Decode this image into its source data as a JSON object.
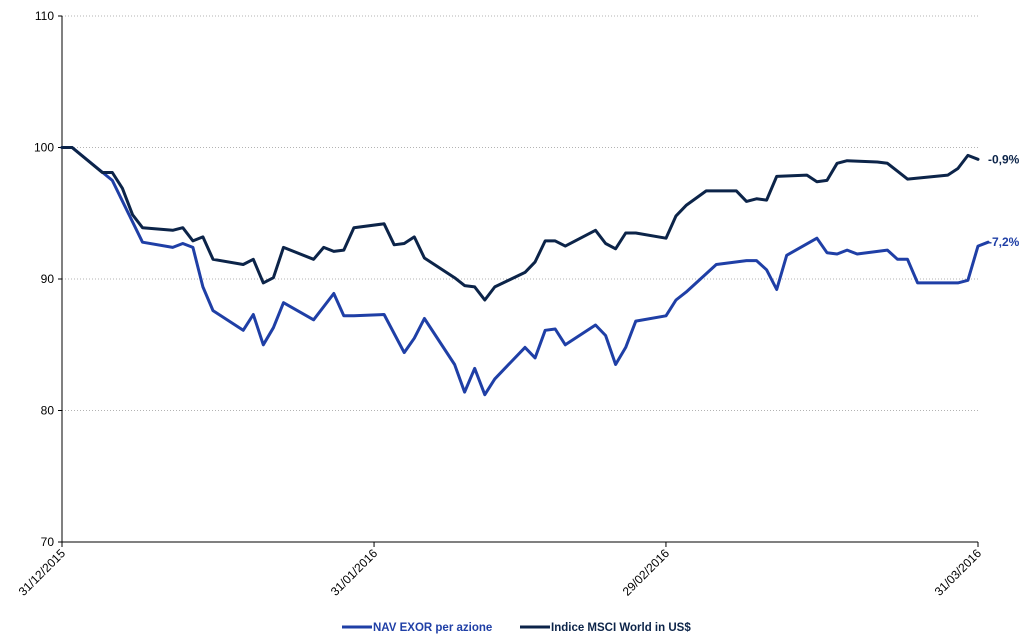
{
  "chart_data": {
    "type": "line",
    "title": "",
    "xlabel": "",
    "ylabel": "",
    "ylim": [
      70,
      110
    ],
    "yticks": [
      "70",
      "80",
      "90",
      "100",
      "110"
    ],
    "x_range": [
      0,
      91
    ],
    "xticks": [
      {
        "label": "31/12/2015",
        "x": 0
      },
      {
        "label": "31/01/2016",
        "x": 31
      },
      {
        "label": "29/02/2016",
        "x": 60
      },
      {
        "label": "31/03/2016",
        "x": 91
      }
    ],
    "grid": "horizontal-dotted",
    "legend": "bottom",
    "series": [
      {
        "name": "NAV EXOR per azione",
        "color": "#1f3fa6",
        "end_label": "-7,2%",
        "points": [
          [
            0,
            100
          ],
          [
            1,
            100
          ],
          [
            5,
            97.5
          ],
          [
            8,
            92.8
          ],
          [
            11,
            92.4
          ],
          [
            12,
            92.7
          ],
          [
            13,
            92.4
          ],
          [
            14,
            89.4
          ],
          [
            15,
            87.6
          ],
          [
            18,
            86.1
          ],
          [
            19,
            87.3
          ],
          [
            20,
            85
          ],
          [
            21,
            86.3
          ],
          [
            22,
            88.2
          ],
          [
            25,
            86.9
          ],
          [
            27,
            88.9
          ],
          [
            28,
            87.2
          ],
          [
            29,
            87.2
          ],
          [
            32,
            87.3
          ],
          [
            34,
            84.4
          ],
          [
            35,
            85.5
          ],
          [
            36,
            87
          ],
          [
            39,
            83.5
          ],
          [
            40,
            81.4
          ],
          [
            41,
            83.2
          ],
          [
            42,
            81.2
          ],
          [
            43,
            82.4
          ],
          [
            46,
            84.8
          ],
          [
            47,
            84
          ],
          [
            48,
            86.1
          ],
          [
            49,
            86.2
          ],
          [
            50,
            85
          ],
          [
            53,
            86.5
          ],
          [
            54,
            85.7
          ],
          [
            55,
            83.5
          ],
          [
            56,
            84.8
          ],
          [
            57,
            86.8
          ],
          [
            60,
            87.2
          ],
          [
            61,
            88.4
          ],
          [
            62,
            89
          ],
          [
            65,
            91.1
          ],
          [
            68,
            91.4
          ],
          [
            69,
            91.4
          ],
          [
            70,
            90.7
          ],
          [
            71,
            89.2
          ],
          [
            72,
            91.8
          ],
          [
            75,
            93.1
          ],
          [
            76,
            92
          ],
          [
            77,
            91.9
          ],
          [
            78,
            92.2
          ],
          [
            79,
            91.9
          ],
          [
            82,
            92.2
          ],
          [
            83,
            91.5
          ],
          [
            84,
            91.5
          ],
          [
            85,
            89.7
          ],
          [
            89,
            89.7
          ],
          [
            90,
            89.9
          ],
          [
            91,
            92.5
          ],
          [
            92,
            92.8
          ]
        ]
      },
      {
        "name": "Indice MSCI World in US$",
        "color": "#0c2449",
        "end_label": "-0,9%",
        "points": [
          [
            0,
            100
          ],
          [
            1,
            100
          ],
          [
            4,
            98.1
          ],
          [
            5,
            98.1
          ],
          [
            6,
            96.9
          ],
          [
            7,
            94.9
          ],
          [
            8,
            93.9
          ],
          [
            11,
            93.7
          ],
          [
            12,
            93.9
          ],
          [
            13,
            92.9
          ],
          [
            14,
            93.2
          ],
          [
            15,
            91.5
          ],
          [
            18,
            91.1
          ],
          [
            19,
            91.5
          ],
          [
            20,
            89.7
          ],
          [
            21,
            90.1
          ],
          [
            22,
            92.4
          ],
          [
            25,
            91.5
          ],
          [
            26,
            92.4
          ],
          [
            27,
            92.1
          ],
          [
            28,
            92.2
          ],
          [
            29,
            93.9
          ],
          [
            32,
            94.2
          ],
          [
            33,
            92.6
          ],
          [
            34,
            92.7
          ],
          [
            35,
            93.2
          ],
          [
            36,
            91.6
          ],
          [
            39,
            90.1
          ],
          [
            40,
            89.5
          ],
          [
            41,
            89.4
          ],
          [
            42,
            88.4
          ],
          [
            43,
            89.4
          ],
          [
            46,
            90.5
          ],
          [
            47,
            91.3
          ],
          [
            48,
            92.9
          ],
          [
            49,
            92.9
          ],
          [
            50,
            92.5
          ],
          [
            53,
            93.7
          ],
          [
            54,
            92.7
          ],
          [
            55,
            92.3
          ],
          [
            56,
            93.5
          ],
          [
            57,
            93.5
          ],
          [
            60,
            93.1
          ],
          [
            61,
            94.8
          ],
          [
            62,
            95.6
          ],
          [
            64,
            96.7
          ],
          [
            67,
            96.7
          ],
          [
            68,
            95.9
          ],
          [
            69,
            96.1
          ],
          [
            70,
            96
          ],
          [
            71,
            97.8
          ],
          [
            74,
            97.9
          ],
          [
            75,
            97.4
          ],
          [
            76,
            97.5
          ],
          [
            77,
            98.8
          ],
          [
            78,
            99
          ],
          [
            81,
            98.9
          ],
          [
            82,
            98.8
          ],
          [
            83,
            98.2
          ],
          [
            84,
            97.6
          ],
          [
            88,
            97.9
          ],
          [
            89,
            98.4
          ],
          [
            90,
            99.4
          ],
          [
            91,
            99.1
          ]
        ]
      }
    ]
  }
}
